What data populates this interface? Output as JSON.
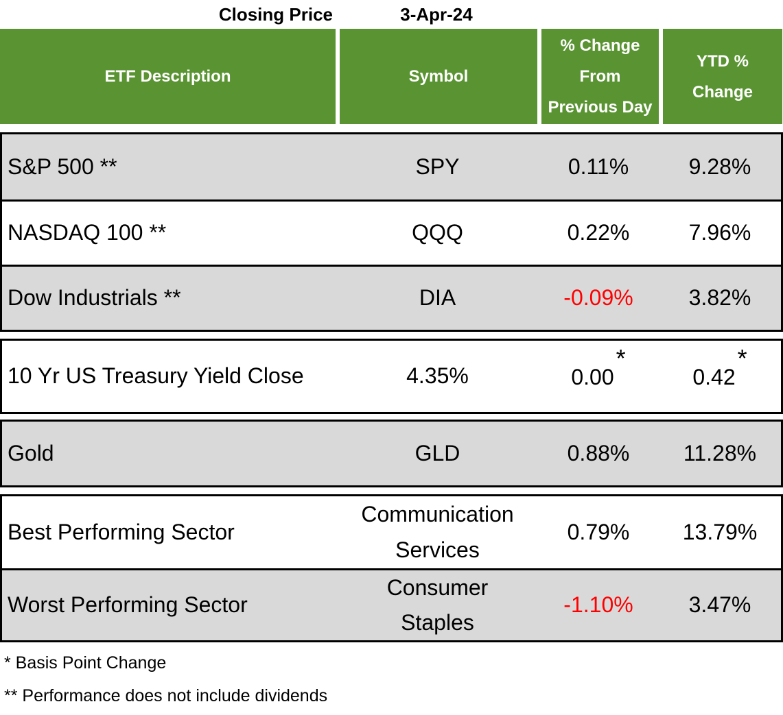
{
  "title": {
    "closing_price_label": "Closing Price",
    "date": "3-Apr-24"
  },
  "table": {
    "columns": [
      {
        "label": "ETF Description"
      },
      {
        "label": "Symbol"
      },
      {
        "label": "% Change From Previous Day"
      },
      {
        "label": "YTD % Change"
      }
    ],
    "sections": [
      {
        "rows": [
          {
            "description": "S&P 500 **",
            "symbol": "SPY",
            "day_change": "0.11%",
            "ytd": "9.28%"
          },
          {
            "description": "NASDAQ 100 **",
            "symbol": "QQQ",
            "day_change": "0.22%",
            "ytd": "7.96%"
          },
          {
            "description": "Dow Industrials **",
            "symbol": "DIA",
            "day_change": "-0.09%",
            "ytd": "3.82%"
          }
        ]
      },
      {
        "rows": [
          {
            "description": "10 Yr US Treasury Yield Close",
            "symbol": "4.35%",
            "day_change": "0.00",
            "day_sup": "*",
            "ytd": "0.42",
            "ytd_sup": "*"
          }
        ]
      },
      {
        "rows": [
          {
            "description": "Gold",
            "symbol": "GLD",
            "day_change": "0.88%",
            "ytd": "11.28%"
          }
        ]
      },
      {
        "rows": [
          {
            "description": "Best Performing Sector",
            "symbol": "Communication Services",
            "day_change": "0.79%",
            "ytd": "13.79%"
          },
          {
            "description": "Worst Performing Sector",
            "symbol": "Consumer Staples",
            "day_change": "-1.10%",
            "ytd": "3.47%"
          }
        ]
      }
    ]
  },
  "footnotes": [
    "* Basis Point Change",
    "** Performance does not include dividends"
  ],
  "colors": {
    "header_bg": "#5A9432",
    "header_text": "#FFFFFF",
    "shaded_row_bg": "#D9D9D9",
    "negative_text": "#FF0000",
    "border": "#000000"
  },
  "chart_data": {
    "type": "table",
    "title": "Closing Price 3-Apr-24",
    "columns": [
      "ETF Description",
      "Symbol",
      "% Change From Previous Day",
      "YTD % Change"
    ],
    "rows": [
      [
        "S&P 500 **",
        "SPY",
        "0.11%",
        "9.28%"
      ],
      [
        "NASDAQ 100 **",
        "QQQ",
        "0.22%",
        "7.96%"
      ],
      [
        "Dow Industrials **",
        "DIA",
        "-0.09%",
        "3.82%"
      ],
      [
        "10 Yr US Treasury Yield Close",
        "4.35%",
        "0.00 *",
        "0.42 *"
      ],
      [
        "Gold",
        "GLD",
        "0.88%",
        "11.28%"
      ],
      [
        "Best Performing Sector",
        "Communication Services",
        "0.79%",
        "13.79%"
      ],
      [
        "Worst Performing Sector",
        "Consumer Staples",
        "-1.10%",
        "3.47%"
      ]
    ],
    "footnotes": [
      "* Basis Point Change",
      "** Performance does not include dividends"
    ],
    "negative_values": [
      "-0.09%",
      "-1.10%"
    ]
  }
}
